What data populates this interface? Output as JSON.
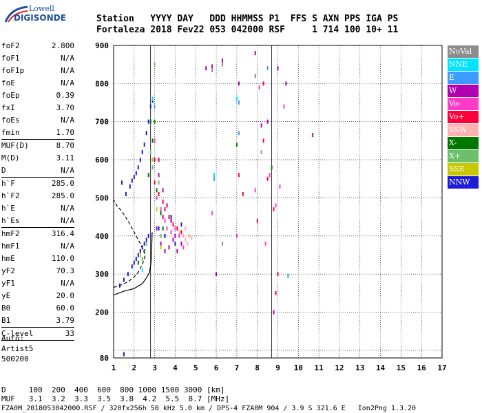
{
  "logo": {
    "line1": "Lowell",
    "line2": "DIGISONDE"
  },
  "header": {
    "labels": "Station   YYYY DAY   DDD HHMMSS P1  FFS S AXN PPS IGA PS",
    "values": "Fortaleza 2018 Fev22 053 042000 RSF     1 714 100 10+ 11"
  },
  "params": [
    {
      "label": "foF2",
      "value": "2.800"
    },
    {
      "label": "foF1",
      "value": "N/A"
    },
    {
      "label": "foF1p",
      "value": "N/A"
    },
    {
      "label": "foE",
      "value": "N/A"
    },
    {
      "label": "foEp",
      "value": "0.39"
    },
    {
      "label": "fxI",
      "value": "3.70"
    },
    {
      "label": "foEs",
      "value": "N/A"
    },
    {
      "label": "fmin",
      "value": "1.70",
      "sep": true
    },
    {
      "label": "MUF(D)",
      "value": "8.70"
    },
    {
      "label": "M(D)",
      "value": "3.11"
    },
    {
      "label": "D",
      "value": "N/A",
      "sep": true
    },
    {
      "label": "h`F",
      "value": "285.0"
    },
    {
      "label": "h`F2",
      "value": "285.0"
    },
    {
      "label": "h`E",
      "value": "N/A"
    },
    {
      "label": "h`Es",
      "value": "N/A",
      "sep": true
    },
    {
      "label": "hmF2",
      "value": "316.4"
    },
    {
      "label": "hmF1",
      "value": "N/A"
    },
    {
      "label": "hmE",
      "value": "110.0"
    },
    {
      "label": "yF2",
      "value": "70.3"
    },
    {
      "label": "yF1",
      "value": "N/A"
    },
    {
      "label": "yE",
      "value": "20.0"
    },
    {
      "label": "B0",
      "value": "60.0"
    },
    {
      "label": "B1",
      "value": "3.79",
      "sep": true
    },
    {
      "label": "C-level",
      "value": "33",
      "sep": true
    }
  ],
  "auto": {
    "line1": "Auto:",
    "line2": "Artist5",
    "line3": "500200"
  },
  "legend": [
    {
      "label": "NoVal",
      "color": "#8c8c8c"
    },
    {
      "label": "NNE",
      "color": "#00e5ff"
    },
    {
      "label": "E",
      "color": "#3d9cff"
    },
    {
      "label": "W",
      "color": "#b000b0"
    },
    {
      "label": "Vo-",
      "color": "#ff3cc8"
    },
    {
      "label": "Vo+",
      "color": "#ff0038"
    },
    {
      "label": "SSW",
      "color": "#ffb0b0"
    },
    {
      "label": "X-",
      "color": "#007800"
    },
    {
      "label": "X+",
      "color": "#6cbf6c"
    },
    {
      "label": "SSE",
      "color": "#c8c800"
    },
    {
      "label": "NNW",
      "color": "#1c1cd2"
    }
  ],
  "bottom": {
    "line1": "D     100  200  400  600  800 1000 1500 3000 [km]",
    "line2": "MUF   3.1  3.2  3.3  3.5  3.8  4.2  5.5  8.7 [MHz]"
  },
  "footer": "FZA0M_2018053042000.RSF / 320fx256h 50 kHz 5.0 km / DPS-4 FZA0M 904 / 3.9 S 321.6 E   Ion2Png 1.3.20",
  "chart_data": {
    "type": "scatter",
    "title": "",
    "xlabel": "",
    "ylabel": "",
    "xlim": [
      1,
      17
    ],
    "ylim": [
      80,
      900
    ],
    "x_ticks": [
      1,
      2,
      3,
      4,
      5,
      6,
      7,
      8,
      9,
      10,
      11,
      12,
      13,
      14,
      15,
      16,
      17
    ],
    "y_ticks": [
      80,
      100,
      200,
      300,
      400,
      500,
      600,
      700,
      800,
      900
    ],
    "y_tick_labels": [
      "80",
      "",
      "200",
      "300",
      "400",
      "500",
      "600",
      "700",
      "800",
      "900"
    ],
    "grid": true,
    "vertical_markers": [
      2.8,
      8.7
    ],
    "series": [
      {
        "legend": "NNW",
        "points": [
          [
            1.3,
            270
          ],
          [
            1.5,
            285
          ],
          [
            1.7,
            300
          ],
          [
            1.9,
            320
          ],
          [
            2.0,
            330
          ],
          [
            2.1,
            340
          ],
          [
            2.2,
            350
          ],
          [
            2.3,
            360
          ],
          [
            2.4,
            370
          ],
          [
            2.5,
            380
          ],
          [
            2.6,
            390
          ],
          [
            2.7,
            400
          ],
          [
            1.6,
            510
          ],
          [
            1.8,
            530
          ],
          [
            1.9,
            545
          ],
          [
            2.0,
            555
          ],
          [
            2.1,
            565
          ],
          [
            2.2,
            580
          ],
          [
            2.3,
            600
          ],
          [
            2.4,
            620
          ],
          [
            2.5,
            640
          ],
          [
            2.6,
            670
          ],
          [
            2.7,
            700
          ],
          [
            2.8,
            740
          ],
          [
            2.9,
            755
          ],
          [
            1.4,
            540
          ],
          [
            3.2,
            420
          ],
          [
            3.5,
            400
          ],
          [
            4.0,
            380
          ],
          [
            4.3,
            430
          ],
          [
            3.8,
            450
          ],
          [
            1.5,
            90
          ]
        ]
      },
      {
        "legend": "W",
        "points": [
          [
            3.0,
            600
          ],
          [
            3.2,
            560
          ],
          [
            3.4,
            520
          ],
          [
            3.6,
            480
          ],
          [
            3.8,
            440
          ],
          [
            4.0,
            400
          ],
          [
            3.3,
            380
          ],
          [
            3.5,
            360
          ],
          [
            3.7,
            370
          ],
          [
            3.9,
            390
          ],
          [
            4.1,
            360
          ],
          [
            4.3,
            380
          ],
          [
            3.1,
            420
          ],
          [
            3.4,
            450
          ],
          [
            5.8,
            845
          ],
          [
            6.3,
            860
          ],
          [
            7.1,
            800
          ],
          [
            7.9,
            880
          ],
          [
            8.2,
            690
          ],
          [
            8.5,
            700
          ],
          [
            8.8,
            200
          ],
          [
            9.0,
            840
          ],
          [
            9.4,
            800
          ],
          [
            10.7,
            665
          ],
          [
            5.5,
            840
          ],
          [
            6.0,
            300
          ]
        ]
      },
      {
        "legend": "Vo-",
        "points": [
          [
            3.1,
            500
          ],
          [
            3.3,
            470
          ],
          [
            3.5,
            440
          ],
          [
            3.6,
            420
          ],
          [
            3.8,
            410
          ],
          [
            4.0,
            420
          ],
          [
            4.2,
            400
          ],
          [
            4.4,
            370
          ],
          [
            3.0,
            650
          ],
          [
            8.6,
            560
          ],
          [
            8.9,
            480
          ],
          [
            9.1,
            530
          ],
          [
            9.3,
            740
          ],
          [
            7.9,
            520
          ],
          [
            8.4,
            380
          ],
          [
            7.0,
            400
          ],
          [
            8.1,
            790
          ],
          [
            5.8,
            460
          ]
        ]
      },
      {
        "legend": "Vo+",
        "points": [
          [
            3.0,
            540
          ],
          [
            3.2,
            510
          ],
          [
            3.4,
            490
          ],
          [
            3.5,
            470
          ],
          [
            3.7,
            450
          ],
          [
            3.9,
            430
          ],
          [
            4.1,
            420
          ],
          [
            4.3,
            410
          ],
          [
            3.2,
            600
          ],
          [
            8.3,
            650
          ],
          [
            8.5,
            550
          ],
          [
            8.8,
            470
          ],
          [
            9.0,
            300
          ],
          [
            8.9,
            250
          ],
          [
            7.1,
            560
          ],
          [
            7.3,
            510
          ],
          [
            8.0,
            440
          ],
          [
            8.3,
            800
          ]
        ]
      },
      {
        "legend": "SSW",
        "points": [
          [
            4.2,
            410
          ],
          [
            4.4,
            400
          ],
          [
            4.5,
            390
          ],
          [
            4.6,
            380
          ],
          [
            4.7,
            400
          ],
          [
            4.8,
            395
          ],
          [
            4.5,
            420
          ]
        ]
      },
      {
        "legend": "X-",
        "points": [
          [
            2.2,
            330
          ],
          [
            2.5,
            360
          ],
          [
            2.8,
            700
          ],
          [
            2.9,
            650
          ],
          [
            3.0,
            700
          ],
          [
            3.1,
            520
          ],
          [
            3.3,
            460
          ],
          [
            3.4,
            420
          ],
          [
            2.7,
            560
          ],
          [
            7.0,
            640
          ],
          [
            8.7,
            580
          ]
        ]
      },
      {
        "legend": "X+",
        "points": [
          [
            2.4,
            340
          ],
          [
            2.6,
            380
          ],
          [
            2.8,
            620
          ],
          [
            2.9,
            580
          ],
          [
            3.2,
            540
          ],
          [
            3.3,
            400
          ],
          [
            3.0,
            850
          ],
          [
            8.2,
            620
          ]
        ]
      },
      {
        "legend": "SSE",
        "points": [
          [
            2.3,
            350
          ],
          [
            2.9,
            600
          ],
          [
            3.1,
            470
          ],
          [
            3.3,
            370
          ]
        ]
      },
      {
        "legend": "E",
        "points": [
          [
            3.0,
            740
          ],
          [
            5.9,
            550
          ],
          [
            7.1,
            750
          ],
          [
            7.1,
            670
          ],
          [
            9.5,
            295
          ],
          [
            8.5,
            840
          ]
        ]
      },
      {
        "legend": "NNE",
        "points": [
          [
            2.9,
            760
          ],
          [
            5.9,
            560
          ],
          [
            7.0,
            760
          ],
          [
            2.4,
            310
          ]
        ]
      },
      {
        "legend": "NoVal",
        "points": [
          [
            5.8,
            835
          ],
          [
            6.3,
            850
          ],
          [
            7.9,
            820
          ],
          [
            6.3,
            380
          ]
        ]
      }
    ],
    "curves": [
      {
        "name": "solid-profile",
        "style": "solid",
        "points": [
          [
            1.0,
            245
          ],
          [
            1.5,
            255
          ],
          [
            2.0,
            262
          ],
          [
            2.4,
            275
          ],
          [
            2.6,
            290
          ],
          [
            2.75,
            305
          ],
          [
            2.82,
            330
          ],
          [
            2.85,
            365
          ],
          [
            2.88,
            410
          ]
        ]
      },
      {
        "name": "dashed-profile",
        "style": "dashed",
        "points": [
          [
            1.0,
            265
          ],
          [
            1.4,
            272
          ],
          [
            1.7,
            280
          ],
          [
            2.0,
            292
          ],
          [
            2.2,
            305
          ],
          [
            2.4,
            325
          ],
          [
            2.55,
            350
          ],
          [
            2.3,
            380
          ],
          [
            2.0,
            410
          ],
          [
            1.7,
            440
          ],
          [
            1.4,
            465
          ],
          [
            1.15,
            480
          ],
          [
            1.0,
            495
          ]
        ]
      }
    ]
  }
}
